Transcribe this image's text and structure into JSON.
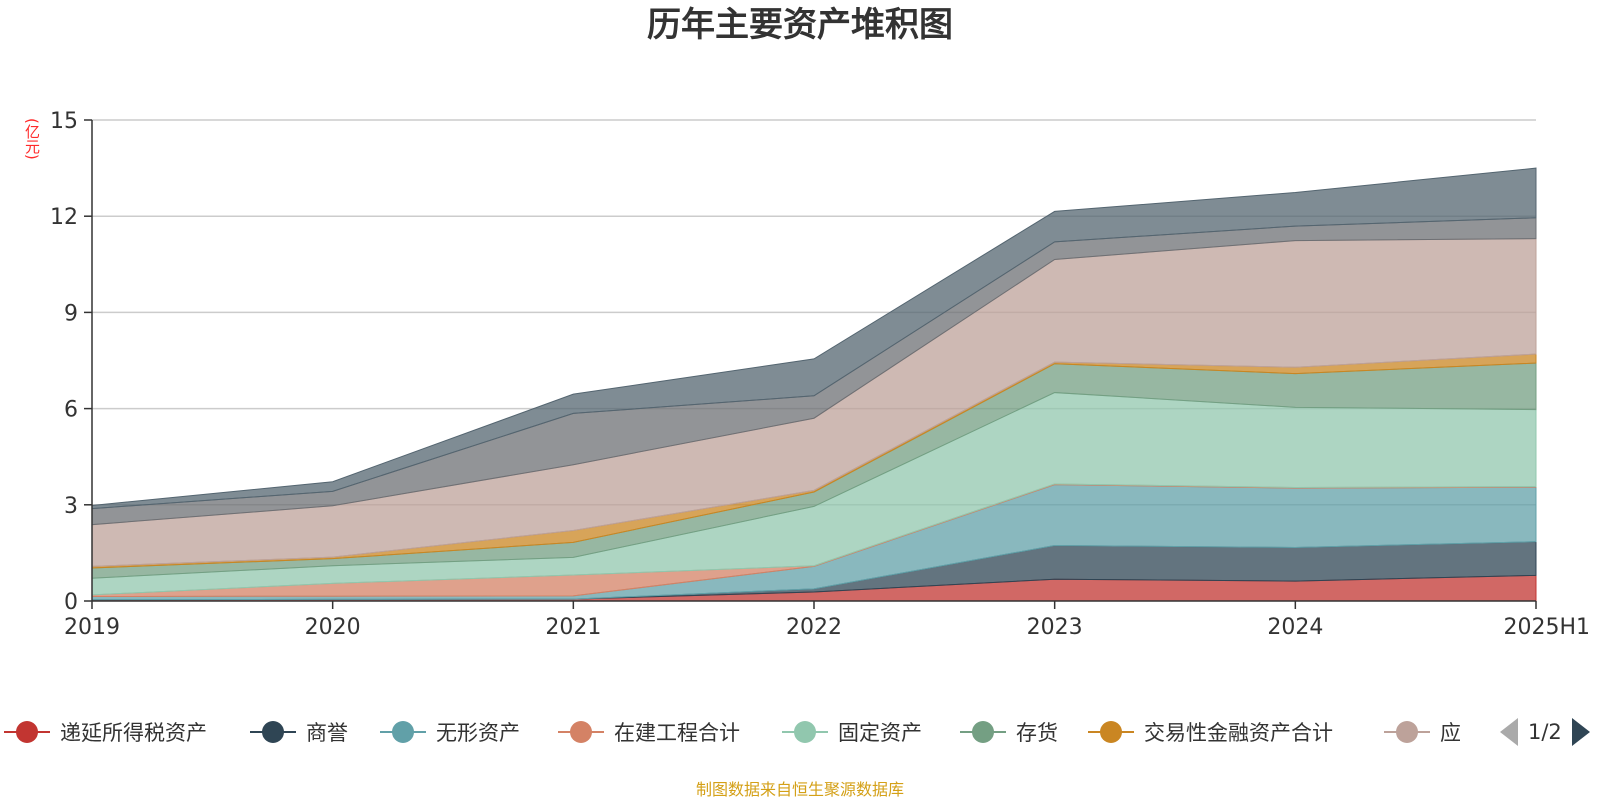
{
  "title": "历年主要资产堆积图",
  "unit_label": "(亿元)",
  "footer": "制图数据来自恒生聚源数据库",
  "pager": {
    "text": "1/2"
  },
  "chart_data": {
    "type": "area",
    "stacked": true,
    "title": "历年主要资产堆积图",
    "ylabel": "(亿元)",
    "ylim": [
      0,
      15
    ],
    "yticks": [
      0,
      3,
      6,
      9,
      12,
      15
    ],
    "grid": true,
    "legend_position": "bottom",
    "categories": [
      "2019",
      "2020",
      "2021",
      "2022",
      "2023",
      "2024",
      "2025H1"
    ],
    "series": [
      {
        "name": "递延所得税资产",
        "color": "#c23531",
        "values": [
          0.04,
          0.05,
          0.06,
          0.28,
          0.68,
          0.62,
          0.8
        ]
      },
      {
        "name": "商誉",
        "color": "#2f4554",
        "values": [
          0.0,
          0.0,
          0.0,
          0.1,
          1.05,
          1.05,
          1.05
        ]
      },
      {
        "name": "无形资产",
        "color": "#61a0a8",
        "values": [
          0.1,
          0.1,
          0.1,
          0.7,
          1.9,
          1.85,
          1.7
        ]
      },
      {
        "name": "在建工程合计",
        "color": "#d48265",
        "values": [
          0.05,
          0.4,
          0.65,
          0.02,
          0.02,
          0.02,
          0.02
        ]
      },
      {
        "name": "固定资产",
        "color": "#91c7ae",
        "values": [
          0.52,
          0.55,
          0.55,
          1.85,
          2.85,
          2.5,
          2.4
        ]
      },
      {
        "name": "存货",
        "color": "#749f83",
        "values": [
          0.32,
          0.22,
          0.47,
          0.45,
          0.9,
          1.05,
          1.45
        ]
      },
      {
        "name": "交易性金融资产合计",
        "color": "#ca8622",
        "values": [
          0.05,
          0.05,
          0.37,
          0.05,
          0.05,
          0.2,
          0.28
        ]
      },
      {
        "name": "应收",
        "color": "#bda29a",
        "values": [
          1.3,
          1.6,
          2.05,
          2.25,
          3.2,
          3.95,
          3.6
        ]
      },
      {
        "color": "#6e7074",
        "values": [
          0.5,
          0.45,
          1.6,
          0.7,
          0.55,
          0.45,
          0.65
        ]
      },
      {
        "color": "#546570",
        "values": [
          0.1,
          0.3,
          0.6,
          1.15,
          0.95,
          1.05,
          1.55
        ]
      }
    ]
  }
}
